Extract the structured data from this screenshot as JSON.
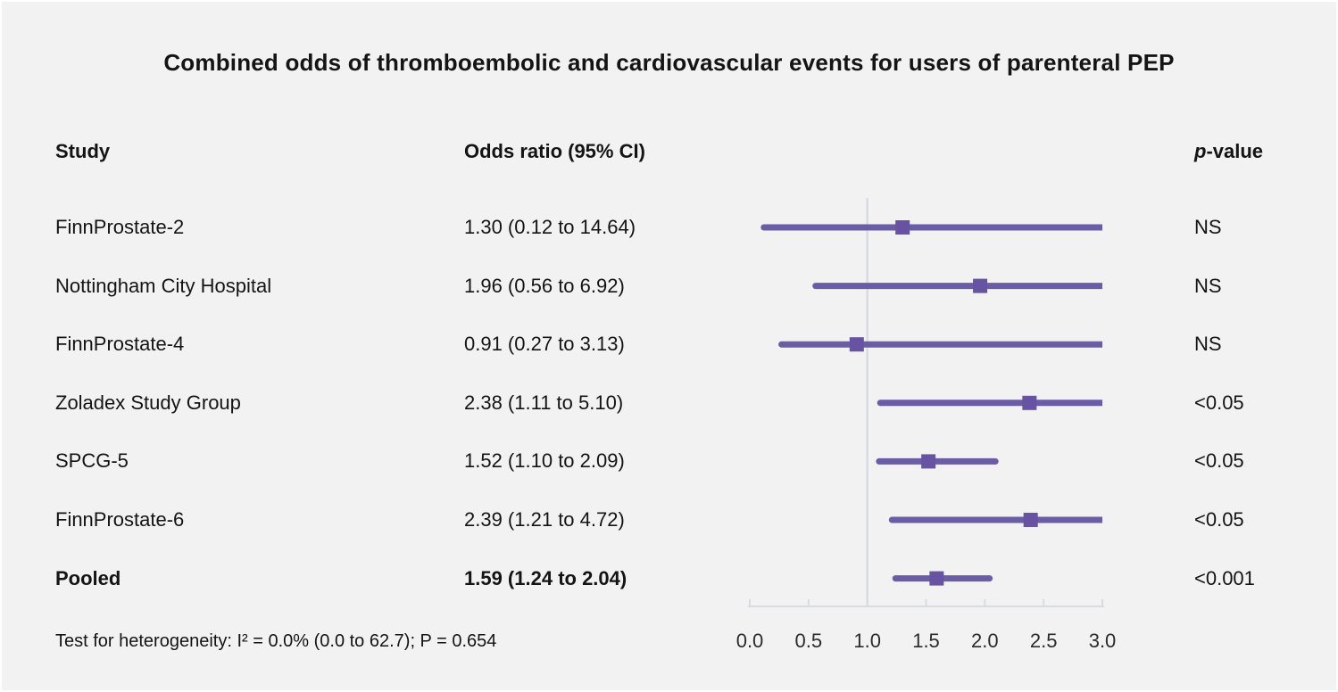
{
  "title": "Combined odds of thromboembolic and cardiovascular events for users of parenteral PEP",
  "columns": {
    "study": "Study",
    "odds_ratio": "Odds ratio (95% CI)",
    "p_italic": "p",
    "p_rest": "-value"
  },
  "footer": "Test for heterogeneity: I² = 0.0% (0.0 to 62.7); P = 0.654",
  "colors": {
    "background": "#f2f2f2",
    "text": "#141414",
    "ci_line": "#6b5ca6",
    "marker": "#6852a2",
    "axis": "#d8dce0",
    "ref_line": "#d8dce0",
    "tick_text": "#2b2b2b"
  },
  "chart_data": {
    "type": "forest",
    "xlim": [
      0,
      3
    ],
    "x_ticks": [
      "0.0",
      "0.5",
      "1.0",
      "1.5",
      "2.0",
      "2.5",
      "3.0"
    ],
    "ref_line_x": 1.0,
    "grid": false,
    "rows": [
      {
        "study": "FinnProstate-2",
        "or": 1.3,
        "lo": 0.12,
        "hi": 14.64,
        "or_text": "1.30 (0.12 to 14.64)",
        "p": "NS",
        "bold": false
      },
      {
        "study": "Nottingham City Hospital",
        "or": 1.96,
        "lo": 0.56,
        "hi": 6.92,
        "or_text": "1.96 (0.56 to 6.92)",
        "p": "NS",
        "bold": false
      },
      {
        "study": "FinnProstate-4",
        "or": 0.91,
        "lo": 0.27,
        "hi": 3.13,
        "or_text": "0.91 (0.27 to 3.13)",
        "p": "NS",
        "bold": false
      },
      {
        "study": "Zoladex Study Group",
        "or": 2.38,
        "lo": 1.11,
        "hi": 5.1,
        "or_text": "2.38 (1.11 to 5.10)",
        "p": "<0.05",
        "bold": false
      },
      {
        "study": "SPCG-5",
        "or": 1.52,
        "lo": 1.1,
        "hi": 2.09,
        "or_text": "1.52 (1.10 to 2.09)",
        "p": "<0.05",
        "bold": false
      },
      {
        "study": "FinnProstate-6",
        "or": 2.39,
        "lo": 1.21,
        "hi": 4.72,
        "or_text": "2.39 (1.21 to 4.72)",
        "p": "<0.05",
        "bold": false
      },
      {
        "study": "Pooled",
        "or": 1.59,
        "lo": 1.24,
        "hi": 2.04,
        "or_text": "1.59 (1.24 to 2.04)",
        "p": "<0.001",
        "bold": true
      }
    ]
  }
}
